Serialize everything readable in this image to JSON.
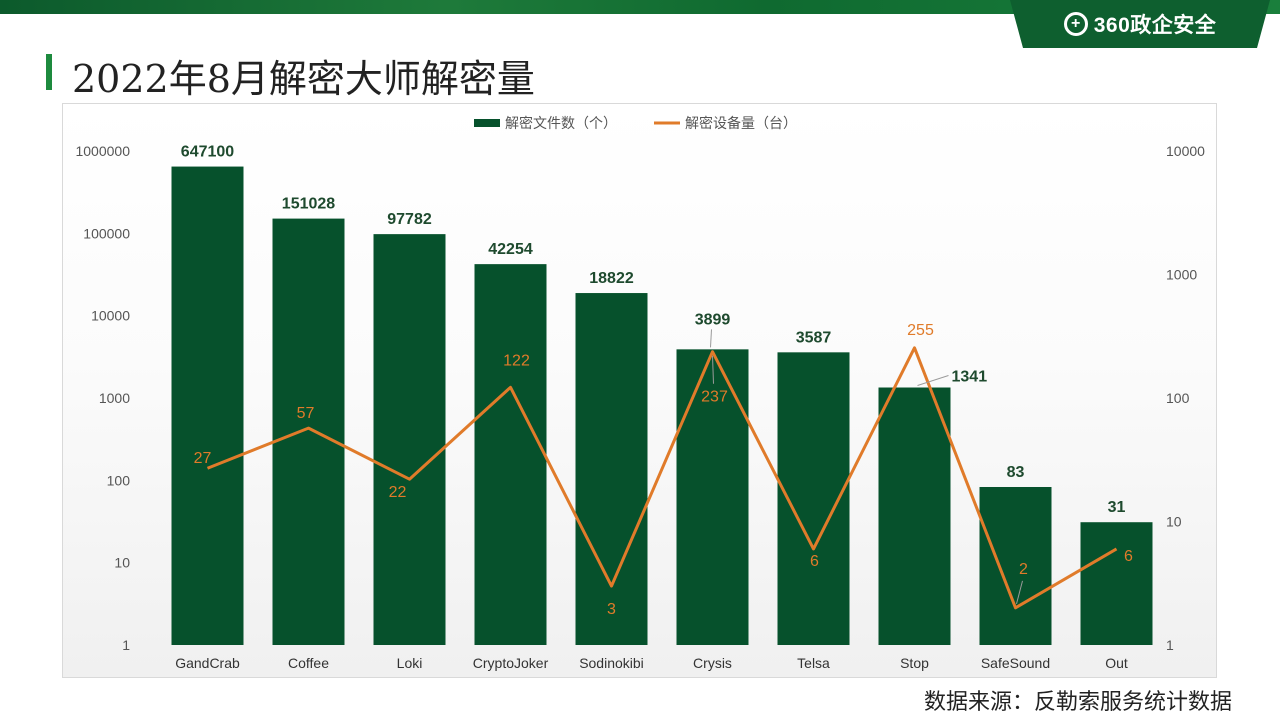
{
  "header": {
    "logo_text": "360政企安全",
    "page_title": "2022年8月解密大师解密量"
  },
  "source_note": "数据来源：反勒索服务统计数据",
  "colors": {
    "bar": "#06512c",
    "line": "#e07b2a",
    "brand": "#0e5f2f"
  },
  "chart_data": {
    "type": "bar",
    "title": "",
    "categories": [
      "GandCrab",
      "Coffee",
      "Loki",
      "CryptoJoker",
      "Sodinokibi",
      "Crysis",
      "Telsa",
      "Stop",
      "SafeSound",
      "Out"
    ],
    "series": [
      {
        "name": "解密文件数（个）",
        "type": "bar",
        "axis": "left",
        "values": [
          647100,
          151028,
          97782,
          42254,
          18822,
          3899,
          3587,
          1341,
          83,
          31
        ]
      },
      {
        "name": "解密设备量（台）",
        "type": "line",
        "axis": "right",
        "values": [
          27,
          57,
          22,
          122,
          3,
          237,
          6,
          255,
          2,
          6
        ]
      }
    ],
    "left_axis": {
      "scale": "log",
      "range": [
        1,
        1000000
      ],
      "ticks": [
        "1",
        "10",
        "100",
        "1000",
        "10000",
        "100000",
        "1000000"
      ]
    },
    "right_axis": {
      "scale": "log",
      "range": [
        1,
        10000
      ],
      "ticks": [
        "1",
        "10",
        "100",
        "1000",
        "10000"
      ]
    },
    "legend_position": "top",
    "grid": false
  }
}
